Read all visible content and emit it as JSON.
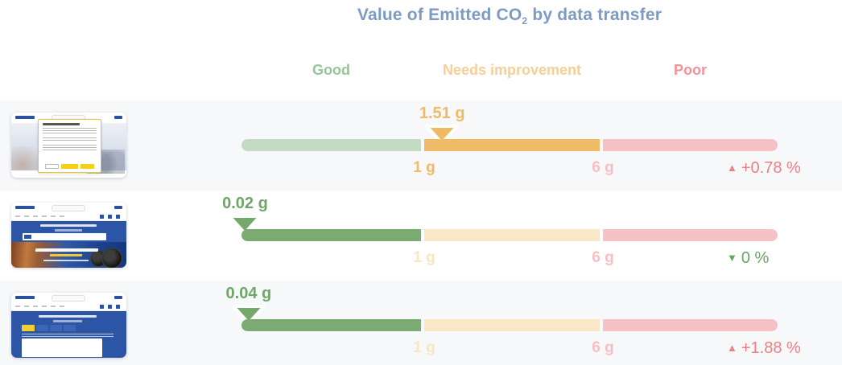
{
  "page": {
    "background": "#ffffff",
    "row_alt_background": "#f7f8fa"
  },
  "chart_data": {
    "type": "bullet",
    "title": {
      "main": "Value of Emitted CO",
      "sub": "2",
      "rest": " by data transfer"
    },
    "title_full": "Value of Emitted CO2 by data transfer",
    "unit": "g",
    "legend_position": "top",
    "bands": [
      {
        "label": "Good",
        "min_g": 0,
        "max_g": 1,
        "strong_color": "#7bab73",
        "pale_color": "#c3dac3",
        "label_color": "#94c795"
      },
      {
        "label": "Needs improvement",
        "min_g": 1,
        "max_g": 6,
        "strong_color": "#f0bb66",
        "pale_color": "#f9e7c7",
        "label_color": "#f5cf95"
      },
      {
        "label": "Poor",
        "min_g": 6,
        "max_g": null,
        "strong_color": "#f5c3c6",
        "pale_color": "#f5c3c6",
        "label_color": "#f2919a"
      }
    ],
    "ticks": [
      {
        "label": "1 g",
        "value_g": 1
      },
      {
        "label": "6 g",
        "value_g": 6
      }
    ],
    "rows": [
      {
        "thumbnail": "cookie-consent-page-screenshot",
        "value_g": 1.51,
        "value_label": "1.51 g",
        "band": "Needs improvement",
        "arrow": "▲",
        "change_label": "+0.78 %",
        "change_direction": "up"
      },
      {
        "thumbnail": "homepage-screenshot",
        "value_g": 0.02,
        "value_label": "0.02 g",
        "band": "Good",
        "arrow": "▼",
        "change_label": "0 %",
        "change_direction": "down"
      },
      {
        "thumbnail": "vehicle-search-page-screenshot",
        "value_g": 0.04,
        "value_label": "0.04 g",
        "band": "Good",
        "arrow": "▲",
        "change_label": "+1.88 %",
        "change_direction": "up"
      }
    ]
  },
  "colors": {
    "title_text": "#7d9bc2",
    "up_change_text": "#ee7e80",
    "down_change_text": "#68a763",
    "marker_outline": "#ffffff"
  }
}
